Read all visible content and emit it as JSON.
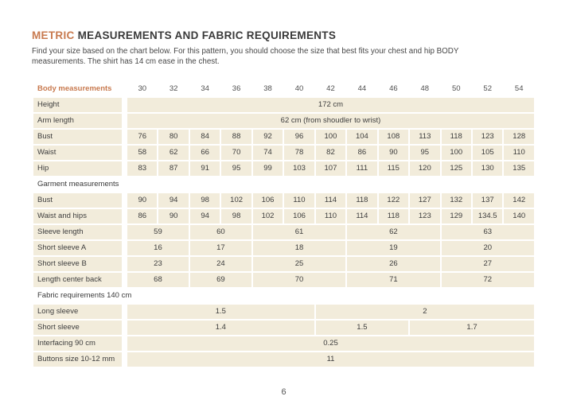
{
  "page": {
    "title_accent": "METRIC",
    "title_rest": " MEASUREMENTS AND FABRIC REQUIREMENTS",
    "intro_lines": [
      "Find your size based on the chart below. For this pattern, you should choose the size that best fits your chest and hip BODY",
      "measurements. The shirt has 14 cm ease in the chest."
    ],
    "page_number": "6"
  },
  "colors": {
    "accent_orange": "#c87a4f",
    "cell_beige": "#f2ecdb",
    "text_dark": "#3d3d3d"
  },
  "table": {
    "size_row": {
      "label": "Body measurements",
      "sizes": [
        "30",
        "32",
        "34",
        "36",
        "38",
        "40",
        "42",
        "44",
        "46",
        "48",
        "50",
        "52",
        "54"
      ]
    },
    "rows": [
      {
        "type": "data",
        "label": "Height",
        "cells": [
          [
            "172 cm",
            13
          ]
        ]
      },
      {
        "type": "data",
        "label": "Arm length",
        "cells": [
          [
            "62 cm (from shoudler to wrist)",
            13
          ]
        ]
      },
      {
        "type": "data",
        "label": "Bust",
        "cells": [
          [
            "76",
            1
          ],
          [
            "80",
            1
          ],
          [
            "84",
            1
          ],
          [
            "88",
            1
          ],
          [
            "92",
            1
          ],
          [
            "96",
            1
          ],
          [
            "100",
            1
          ],
          [
            "104",
            1
          ],
          [
            "108",
            1
          ],
          [
            "113",
            1
          ],
          [
            "118",
            1
          ],
          [
            "123",
            1
          ],
          [
            "128",
            1
          ]
        ]
      },
      {
        "type": "data",
        "label": "Waist",
        "cells": [
          [
            "58",
            1
          ],
          [
            "62",
            1
          ],
          [
            "66",
            1
          ],
          [
            "70",
            1
          ],
          [
            "74",
            1
          ],
          [
            "78",
            1
          ],
          [
            "82",
            1
          ],
          [
            "86",
            1
          ],
          [
            "90",
            1
          ],
          [
            "95",
            1
          ],
          [
            "100",
            1
          ],
          [
            "105",
            1
          ],
          [
            "110",
            1
          ]
        ]
      },
      {
        "type": "data",
        "label": "Hip",
        "cells": [
          [
            "83",
            1
          ],
          [
            "87",
            1
          ],
          [
            "91",
            1
          ],
          [
            "95",
            1
          ],
          [
            "99",
            1
          ],
          [
            "103",
            1
          ],
          [
            "107",
            1
          ],
          [
            "111",
            1
          ],
          [
            "115",
            1
          ],
          [
            "120",
            1
          ],
          [
            "125",
            1
          ],
          [
            "130",
            1
          ],
          [
            "135",
            1
          ]
        ]
      },
      {
        "type": "section",
        "label": "Garment measurements"
      },
      {
        "type": "data",
        "label": "Bust",
        "cells": [
          [
            "90",
            1
          ],
          [
            "94",
            1
          ],
          [
            "98",
            1
          ],
          [
            "102",
            1
          ],
          [
            "106",
            1
          ],
          [
            "110",
            1
          ],
          [
            "114",
            1
          ],
          [
            "118",
            1
          ],
          [
            "122",
            1
          ],
          [
            "127",
            1
          ],
          [
            "132",
            1
          ],
          [
            "137",
            1
          ],
          [
            "142",
            1
          ]
        ]
      },
      {
        "type": "data",
        "label": "Waist and hips",
        "cells": [
          [
            "86",
            1
          ],
          [
            "90",
            1
          ],
          [
            "94",
            1
          ],
          [
            "98",
            1
          ],
          [
            "102",
            1
          ],
          [
            "106",
            1
          ],
          [
            "110",
            1
          ],
          [
            "114",
            1
          ],
          [
            "118",
            1
          ],
          [
            "123",
            1
          ],
          [
            "129",
            1
          ],
          [
            "134.5",
            1
          ],
          [
            "140",
            1
          ]
        ]
      },
      {
        "type": "data",
        "label": "Sleeve length",
        "cells": [
          [
            "59",
            2
          ],
          [
            "60",
            2
          ],
          [
            "61",
            3
          ],
          [
            "62",
            3
          ],
          [
            "63",
            3
          ]
        ]
      },
      {
        "type": "data",
        "label": "Short sleeve A",
        "cells": [
          [
            "16",
            2
          ],
          [
            "17",
            2
          ],
          [
            "18",
            3
          ],
          [
            "19",
            3
          ],
          [
            "20",
            3
          ]
        ]
      },
      {
        "type": "data",
        "label": "Short sleeve B",
        "cells": [
          [
            "23",
            2
          ],
          [
            "24",
            2
          ],
          [
            "25",
            3
          ],
          [
            "26",
            3
          ],
          [
            "27",
            3
          ]
        ]
      },
      {
        "type": "data",
        "label": "Length center back",
        "cells": [
          [
            "68",
            2
          ],
          [
            "69",
            2
          ],
          [
            "70",
            3
          ],
          [
            "71",
            3
          ],
          [
            "72",
            3
          ]
        ]
      },
      {
        "type": "section",
        "label": "Fabric requirements 140 cm"
      },
      {
        "type": "data",
        "label": "Long sleeve",
        "cells": [
          [
            "1.5",
            6
          ],
          [
            "2",
            7
          ]
        ]
      },
      {
        "type": "data",
        "label": "Short sleeve",
        "cells": [
          [
            "1.4",
            6
          ],
          [
            "1.5",
            3
          ],
          [
            "1.7",
            4
          ]
        ]
      },
      {
        "type": "data",
        "label": "Interfacing 90 cm",
        "cells": [
          [
            "0.25",
            13
          ]
        ]
      },
      {
        "type": "data",
        "label": "Buttons size 10-12 mm",
        "cells": [
          [
            "11",
            13
          ]
        ]
      }
    ]
  }
}
